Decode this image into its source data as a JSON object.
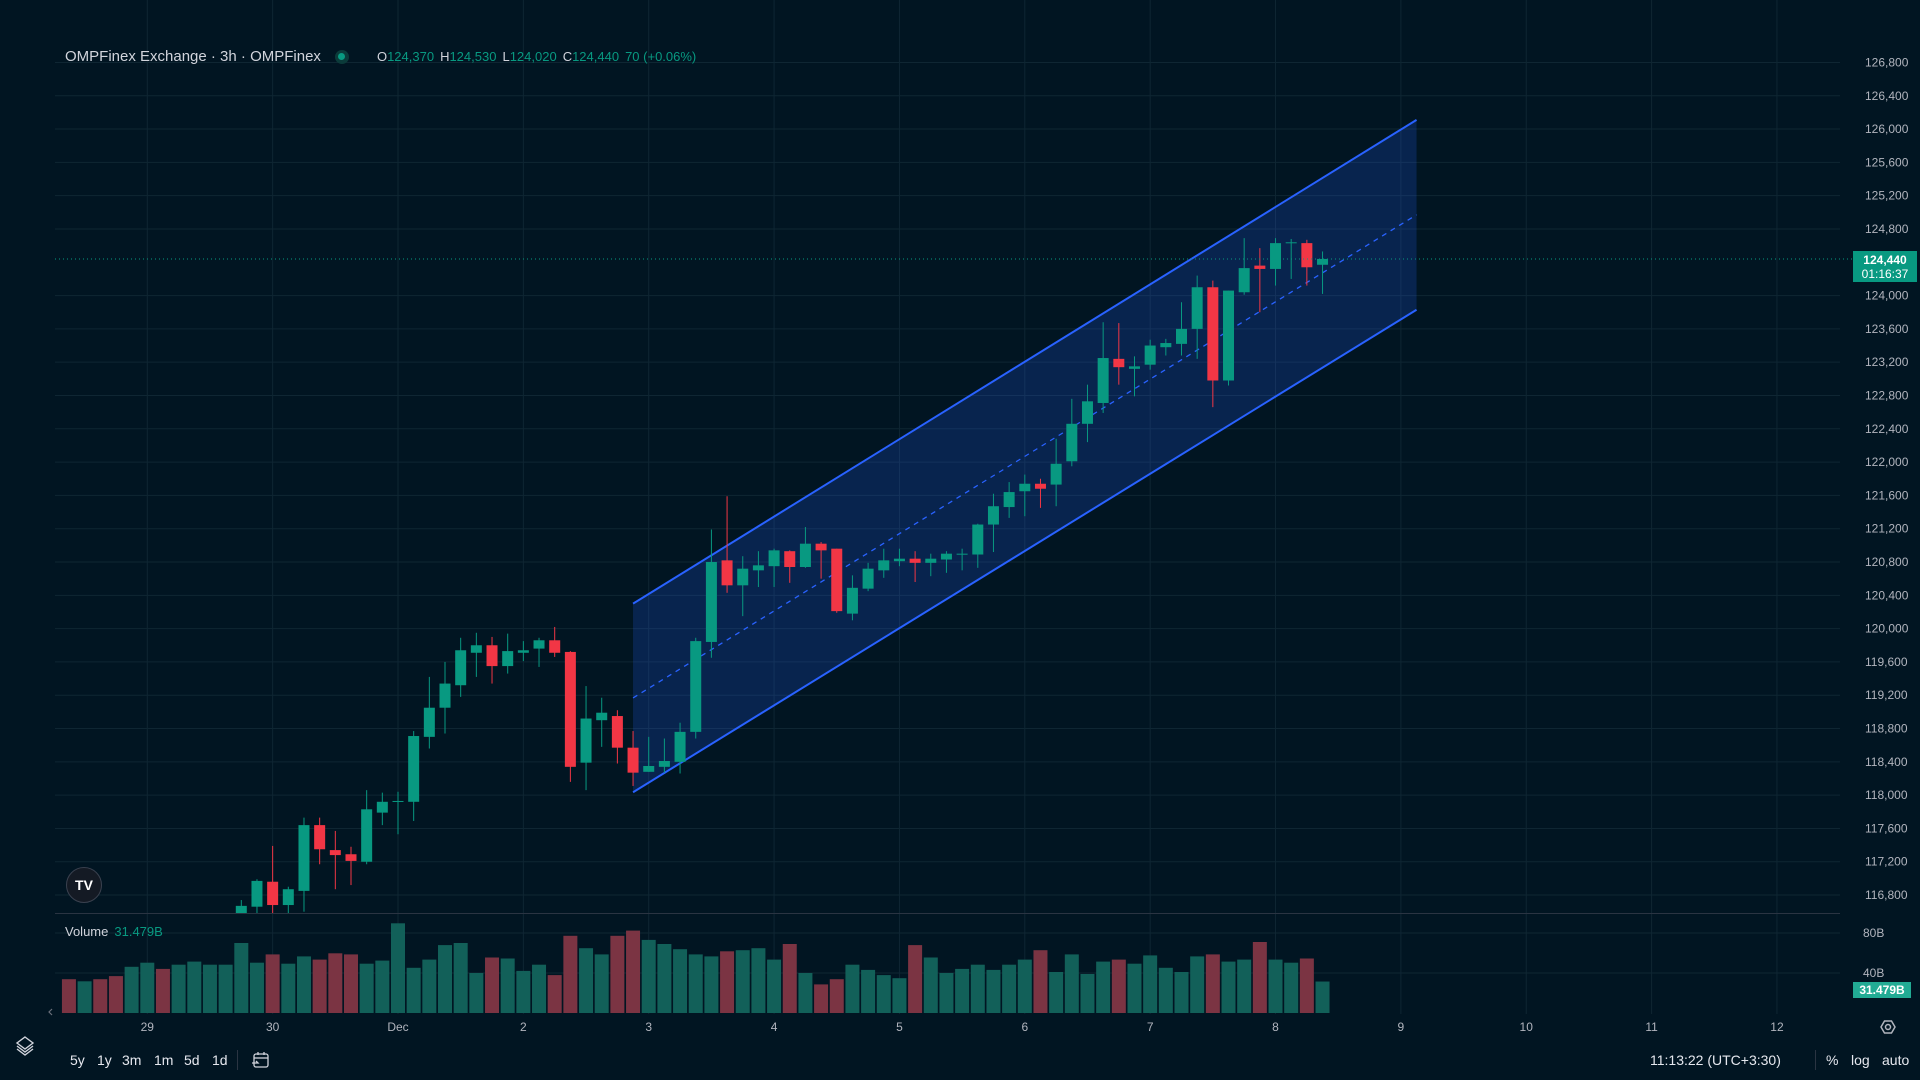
{
  "header": {
    "title": "OMPFinex Exchange · 3h · OMPFinex",
    "open_label": "O",
    "open": "124,370",
    "high_label": "H",
    "high": "124,530",
    "low_label": "L",
    "low": "124,020",
    "close_label": "C",
    "close": "124,440",
    "change": "70 (+0.06%)"
  },
  "volume_pane": {
    "label": "Volume",
    "value": "31.479B"
  },
  "price_tag": {
    "price": "124,440",
    "countdown": "01:16:37"
  },
  "volume_tag": "31.479B",
  "bottom_bar": {
    "ranges": [
      "5y",
      "1y",
      "3m",
      "1m",
      "5d",
      "1d"
    ],
    "clock": "11:13:22 (UTC+3:30)",
    "percent": "%",
    "log": "log",
    "auto": "auto"
  },
  "icons": [
    "layers-icon",
    "goto-date-icon",
    "settings-icon",
    "tradingview-logo-icon",
    "scroll-left-icon"
  ],
  "colors": {
    "background": "#011522",
    "up": "#089981",
    "down": "#f23645",
    "volume_up": "#126059",
    "volume_down": "#7b3443",
    "channel": "#2962ff"
  },
  "chart_data": {
    "type": "candlestick",
    "interval": "3h",
    "start": "Nov 29 18:00",
    "ylim": [
      116575,
      127200
    ],
    "grid": true,
    "price_ticks": [
      "126,800",
      "126,400",
      "126,000",
      "125,600",
      "125,200",
      "124,800",
      "124,000",
      "123,600",
      "123,200",
      "122,800",
      "122,400",
      "122,000",
      "121,600",
      "121,200",
      "120,800",
      "120,400",
      "120,000",
      "119,600",
      "119,200",
      "118,800",
      "118,400",
      "118,000",
      "117,600",
      "117,200",
      "116,800"
    ],
    "time_ticks": [
      {
        "label": "29",
        "t": "Nov 29 00:00"
      },
      {
        "label": "30",
        "t": "Nov 30 00:00"
      },
      {
        "label": "Dec",
        "t": "Dec 1 00:00"
      },
      {
        "label": "2",
        "t": "Dec 2 00:00"
      },
      {
        "label": "3",
        "t": "Dec 3 00:00"
      },
      {
        "label": "4",
        "t": "Dec 4 00:00"
      },
      {
        "label": "5",
        "t": "Dec 5 00:00"
      },
      {
        "label": "6",
        "t": "Dec 6 00:00"
      },
      {
        "label": "7",
        "t": "Dec 7 00:00"
      },
      {
        "label": "8",
        "t": "Dec 8 00:00"
      },
      {
        "label": "9",
        "t": "Dec 9 00:00"
      },
      {
        "label": "10",
        "t": "Dec 10 00:00"
      },
      {
        "label": "11",
        "t": "Dec 11 00:00"
      },
      {
        "label": "12",
        "t": "Dec 12 00:00"
      }
    ],
    "candles_ohlc": [
      [
        116500,
        116740,
        116400,
        116670
      ],
      [
        116660,
        116990,
        116550,
        116970
      ],
      [
        116960,
        117390,
        116550,
        116680
      ],
      [
        116680,
        116900,
        116570,
        116870
      ],
      [
        116850,
        117730,
        116600,
        117640
      ],
      [
        117640,
        117730,
        117170,
        117350
      ],
      [
        117340,
        117570,
        116870,
        117280
      ],
      [
        117290,
        117380,
        116920,
        117210
      ],
      [
        117200,
        118060,
        117170,
        117830
      ],
      [
        117790,
        118030,
        117640,
        117920
      ],
      [
        117920,
        118040,
        117530,
        117930
      ],
      [
        117920,
        118770,
        117690,
        118710
      ],
      [
        118700,
        119420,
        118560,
        119050
      ],
      [
        119050,
        119600,
        118740,
        119340
      ],
      [
        119320,
        119890,
        119180,
        119740
      ],
      [
        119710,
        119950,
        119420,
        119800
      ],
      [
        119800,
        119900,
        119340,
        119550
      ],
      [
        119550,
        119940,
        119460,
        119730
      ],
      [
        119710,
        119850,
        119610,
        119740
      ],
      [
        119760,
        119890,
        119540,
        119860
      ],
      [
        119860,
        120020,
        119660,
        119710
      ],
      [
        119720,
        119730,
        118160,
        118340
      ],
      [
        118390,
        119310,
        118060,
        118920
      ],
      [
        118900,
        119170,
        118580,
        118990
      ],
      [
        118950,
        119020,
        118380,
        118570
      ],
      [
        118570,
        118770,
        118110,
        118270
      ],
      [
        118280,
        118700,
        118280,
        118350
      ],
      [
        118340,
        118680,
        118270,
        118410
      ],
      [
        118400,
        118870,
        118260,
        118760
      ],
      [
        118760,
        119890,
        118680,
        119850
      ],
      [
        119840,
        121190,
        119650,
        120800
      ],
      [
        120820,
        121590,
        120430,
        120520
      ],
      [
        120520,
        120870,
        120150,
        120720
      ],
      [
        120700,
        120930,
        120500,
        120760
      ],
      [
        120750,
        120960,
        120500,
        120940
      ],
      [
        120930,
        120940,
        120550,
        120740
      ],
      [
        120740,
        121220,
        120730,
        121020
      ],
      [
        121020,
        121040,
        120600,
        120940
      ],
      [
        120960,
        120960,
        120190,
        120210
      ],
      [
        120180,
        120640,
        120100,
        120490
      ],
      [
        120480,
        120790,
        120450,
        120720
      ],
      [
        120700,
        120960,
        120610,
        120820
      ],
      [
        120810,
        120960,
        120750,
        120840
      ],
      [
        120840,
        120930,
        120560,
        120790
      ],
      [
        120790,
        120900,
        120630,
        120840
      ],
      [
        120830,
        120930,
        120670,
        120900
      ],
      [
        120890,
        120960,
        120700,
        120900
      ],
      [
        120890,
        121260,
        120730,
        121250
      ],
      [
        121250,
        121620,
        120920,
        121470
      ],
      [
        121460,
        121760,
        121330,
        121640
      ],
      [
        121650,
        121850,
        121350,
        121740
      ],
      [
        121740,
        121800,
        121450,
        121680
      ],
      [
        121730,
        122280,
        121470,
        121980
      ],
      [
        122010,
        122760,
        121950,
        122460
      ],
      [
        122460,
        122930,
        122240,
        122730
      ],
      [
        122710,
        123680,
        122590,
        123250
      ],
      [
        123240,
        123670,
        122930,
        123140
      ],
      [
        123120,
        123270,
        122790,
        123150
      ],
      [
        123170,
        123470,
        123110,
        123400
      ],
      [
        123380,
        123480,
        123280,
        123430
      ],
      [
        123420,
        123920,
        123280,
        123600
      ],
      [
        123600,
        124240,
        123240,
        124100
      ],
      [
        124100,
        124180,
        122660,
        122980
      ],
      [
        122980,
        124060,
        122920,
        124060
      ],
      [
        124040,
        124690,
        124010,
        124330
      ],
      [
        124360,
        124570,
        123800,
        124320
      ],
      [
        124320,
        124690,
        124120,
        124630
      ],
      [
        124630,
        124680,
        124200,
        124640
      ],
      [
        124630,
        124670,
        124120,
        124340
      ],
      [
        124370,
        124530,
        124020,
        124440
      ]
    ],
    "volume": {
      "unit": "B",
      "ticks": [
        "80B",
        "40B"
      ],
      "first_bar_time": "Nov 28 09:00",
      "values": [
        33.8,
        31.7,
        33.8,
        36.9,
        46.2,
        50.3,
        44.1,
        48.3,
        51.4,
        48.3,
        48.3,
        70,
        50.3,
        58.6,
        49.3,
        56.6,
        53.4,
        59.7,
        58.6,
        49.3,
        52.4,
        89.7,
        45.2,
        53.4,
        67.9,
        70,
        40,
        55.5,
        54.5,
        42.1,
        48.3,
        37.9,
        77.2,
        64.8,
        58.6,
        77.2,
        82.4,
        73.1,
        69,
        63.8,
        58.6,
        56.6,
        61.7,
        62.8,
        64.8,
        53.4,
        69,
        40,
        28.6,
        33.8,
        48.3,
        43.1,
        37.9,
        34.8,
        67.9,
        55.5,
        40,
        44.1,
        48.3,
        43.1,
        48.3,
        53.4,
        62.8,
        41,
        58.6,
        39,
        51.4,
        53.4,
        49.3,
        57.6,
        45.2,
        41,
        56.6,
        58.6,
        51.4,
        53.4,
        71,
        53.4,
        50.3,
        54.5,
        31.479
      ],
      "up": [
        0,
        1,
        0,
        0,
        1,
        1,
        0,
        1,
        1,
        1,
        1
      ]
    },
    "last_price": 124440,
    "parallel_channel": {
      "start": "Dec 2 21:00",
      "end": "Dec 9 03:00",
      "upper": [
        120300,
        126110
      ],
      "lower": [
        118035,
        123830
      ]
    }
  }
}
